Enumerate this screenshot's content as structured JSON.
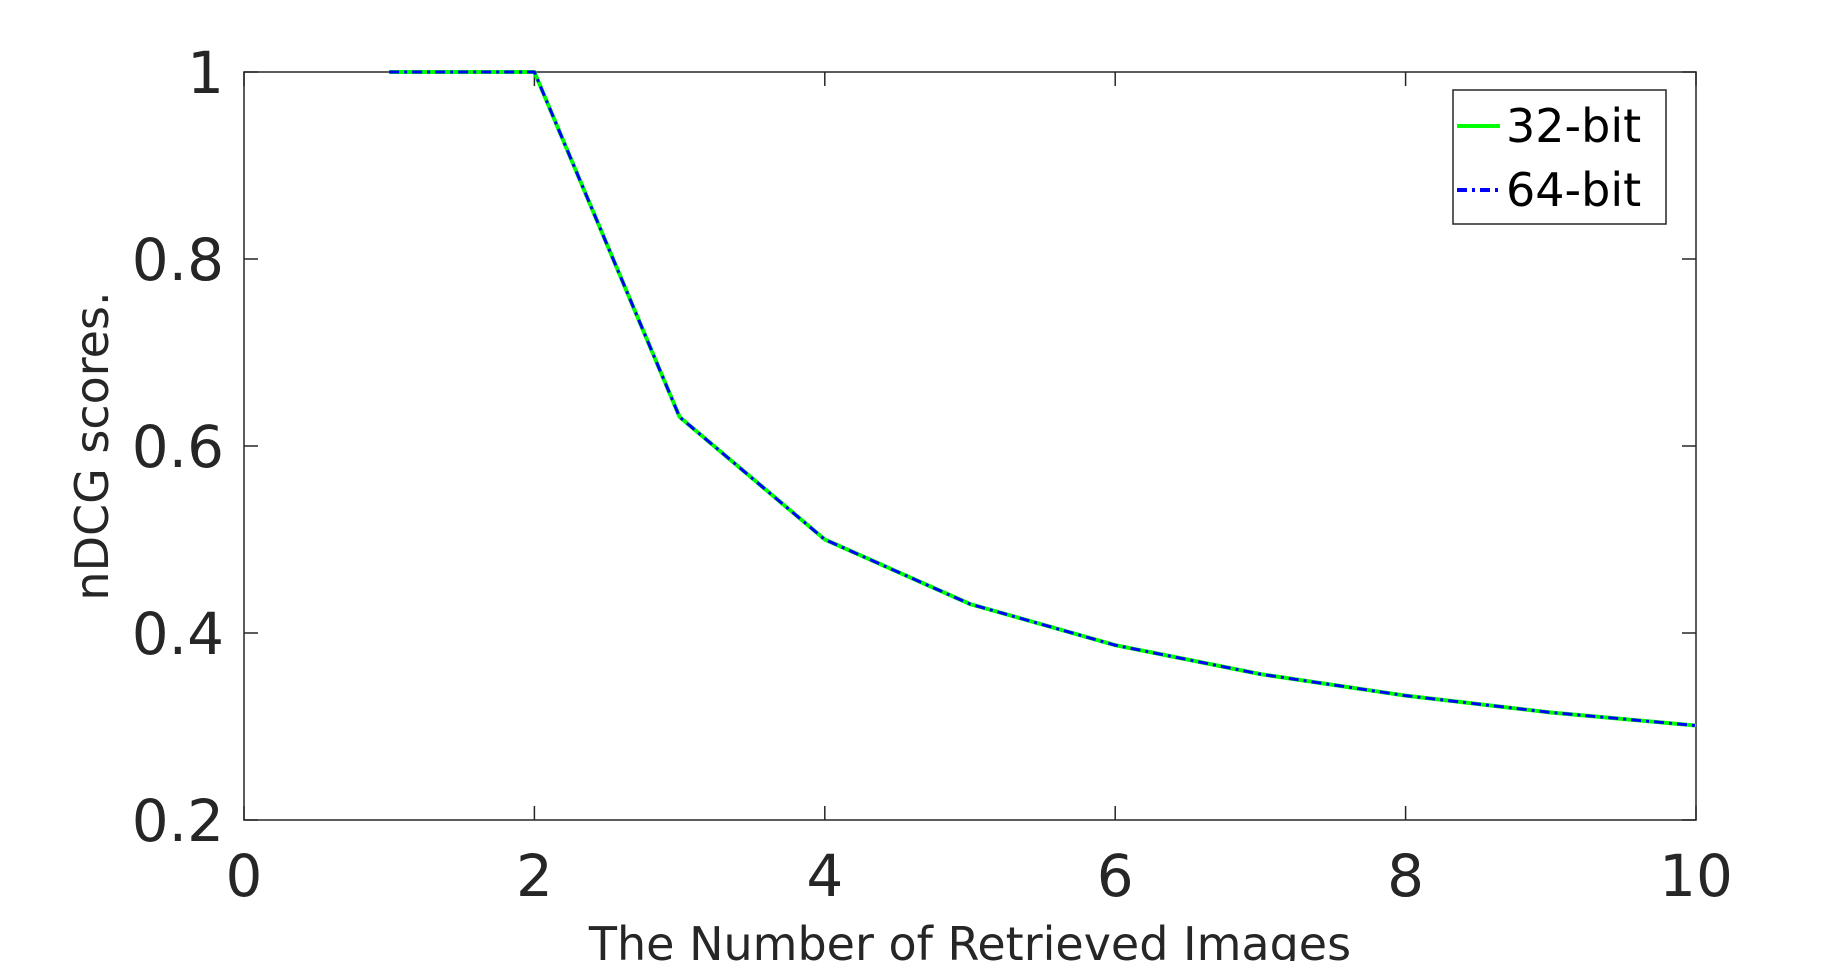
{
  "chart_data": {
    "type": "line",
    "title": "",
    "xlabel": "The Number of Retrieved Images",
    "ylabel": "nDCG scores.",
    "xlim": [
      0,
      10
    ],
    "ylim": [
      0.2,
      1
    ],
    "xticks": [
      0,
      2,
      4,
      6,
      8,
      10
    ],
    "yticks": [
      0.2,
      0.4,
      0.6,
      0.8,
      1
    ],
    "ytick_labels": [
      "0.2",
      "0.4",
      "0.6",
      "0.8",
      "1"
    ],
    "xtick_labels": [
      "0",
      "2",
      "4",
      "6",
      "8",
      "10"
    ],
    "grid": false,
    "legend_position": "top-right",
    "x": [
      1,
      2,
      3,
      4,
      5,
      6,
      7,
      8,
      9,
      10
    ],
    "series": [
      {
        "name": "32-bit",
        "color": "#00ff00",
        "style": "solid",
        "values": [
          1.0,
          1.0,
          0.631,
          0.5,
          0.431,
          0.387,
          0.356,
          0.333,
          0.315,
          0.301
        ]
      },
      {
        "name": "64-bit",
        "color": "#0000ff",
        "style": "dash-dot",
        "values": [
          1.0,
          1.0,
          0.631,
          0.5,
          0.431,
          0.387,
          0.356,
          0.333,
          0.315,
          0.301
        ]
      }
    ]
  }
}
